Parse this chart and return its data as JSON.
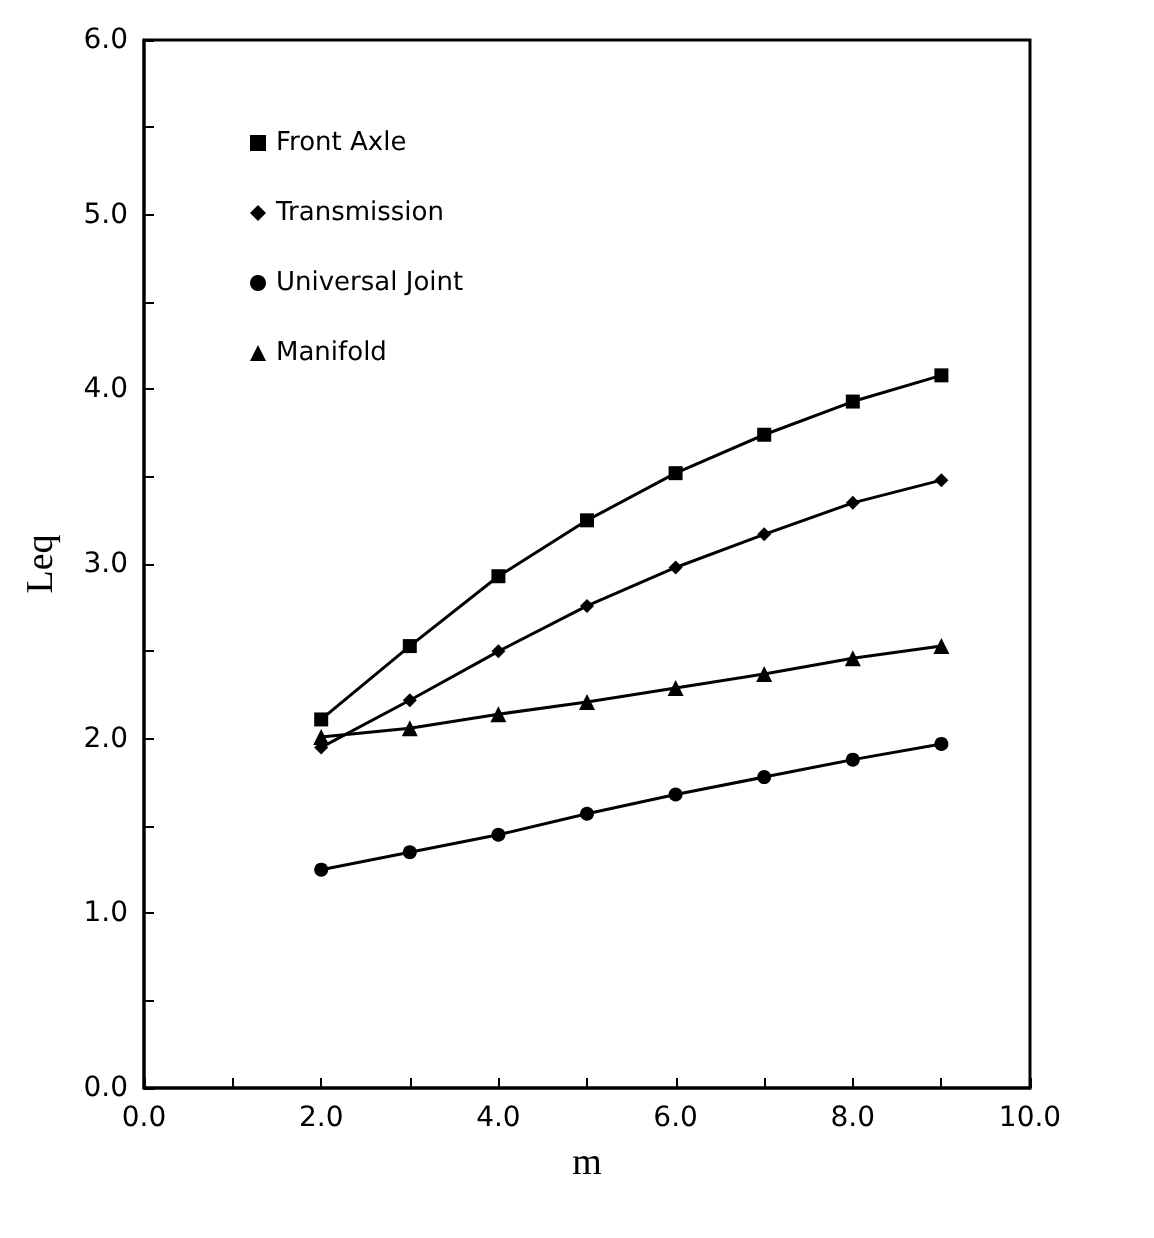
{
  "chart_data": {
    "type": "line",
    "xlabel": "m",
    "ylabel": "Leq",
    "x": [
      2,
      3,
      4,
      5,
      6,
      7,
      8,
      9
    ],
    "series": [
      {
        "name": "Front Axle",
        "color": "#000000",
        "marker": "square",
        "values": [
          2.11,
          2.53,
          2.93,
          3.25,
          3.52,
          3.74,
          3.93,
          4.08
        ]
      },
      {
        "name": "Transmission",
        "color": "#000000",
        "marker": "diamond",
        "values": [
          1.95,
          2.22,
          2.5,
          2.76,
          2.98,
          3.17,
          3.35,
          3.48
        ]
      },
      {
        "name": "Universal Joint",
        "color": "#000000",
        "marker": "circle",
        "values": [
          1.25,
          1.35,
          1.45,
          1.57,
          1.68,
          1.78,
          1.88,
          1.97
        ]
      },
      {
        "name": "Manifold",
        "color": "#000000",
        "marker": "triangle",
        "values": [
          2.01,
          2.06,
          2.14,
          2.21,
          2.29,
          2.37,
          2.46,
          2.53
        ]
      }
    ],
    "xlim": [
      0,
      10
    ],
    "xticks": [
      {
        "value": 0,
        "label": "0.0"
      },
      {
        "value": 1,
        "label": null
      },
      {
        "value": 2,
        "label": "2.0"
      },
      {
        "value": 3,
        "label": null
      },
      {
        "value": 4,
        "label": "4.0"
      },
      {
        "value": 5,
        "label": null
      },
      {
        "value": 6,
        "label": "6.0"
      },
      {
        "value": 7,
        "label": null
      },
      {
        "value": 8,
        "label": "8.0"
      },
      {
        "value": 9,
        "label": null
      },
      {
        "value": 10,
        "label": "10.0"
      }
    ],
    "ylim": [
      0,
      6
    ],
    "yticks": [
      {
        "value": 0,
        "label": "0.0"
      },
      {
        "value": 0.5,
        "label": null
      },
      {
        "value": 1,
        "label": "1.0"
      },
      {
        "value": 1.5,
        "label": null
      },
      {
        "value": 2,
        "label": "2.0"
      },
      {
        "value": 2.5,
        "label": null
      },
      {
        "value": 3,
        "label": "3.0"
      },
      {
        "value": 3.5,
        "label": null
      },
      {
        "value": 4,
        "label": "4.0"
      },
      {
        "value": 4.5,
        "label": null
      },
      {
        "value": 5,
        "label": "5.0"
      },
      {
        "value": 5.5,
        "label": null
      },
      {
        "value": 6,
        "label": "6.0"
      }
    ],
    "grid": false,
    "legend": "top left",
    "line_style": "solid"
  }
}
